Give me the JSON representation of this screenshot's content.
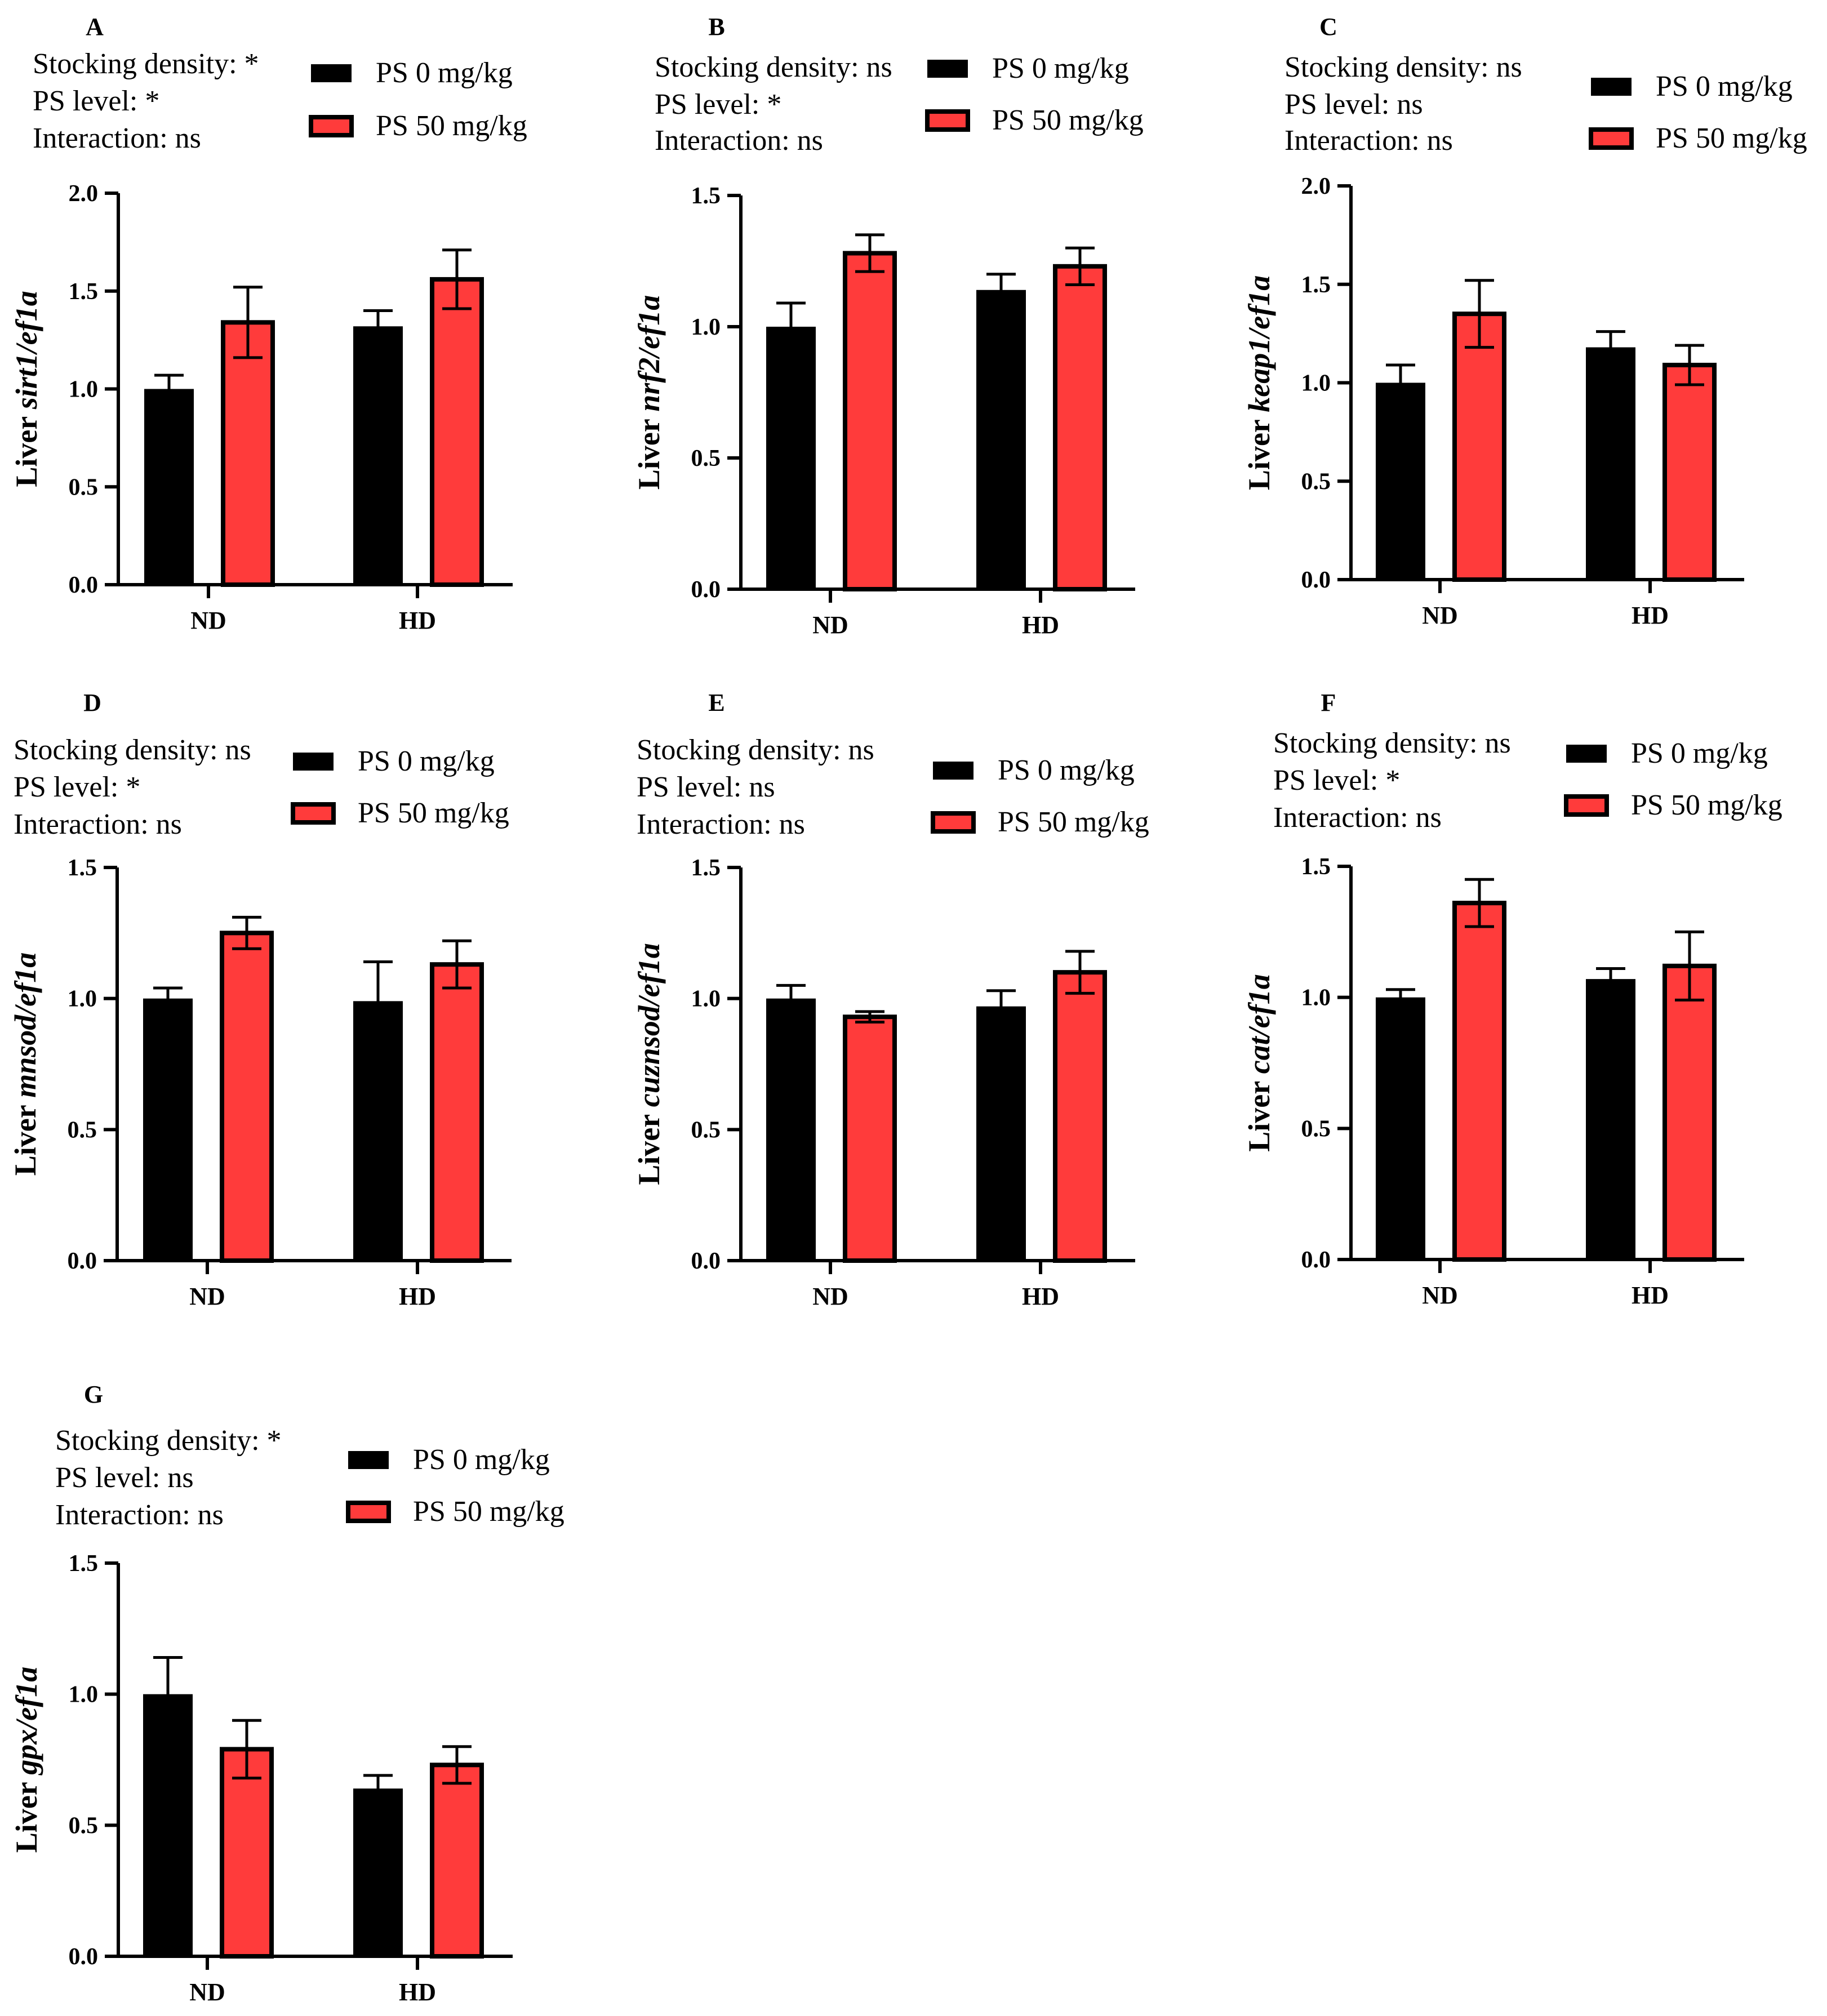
{
  "figure": {
    "legend": {
      "series0": "PS 0 mg/kg",
      "series1": "PS 50 mg/kg"
    },
    "colors": {
      "ps0": "#000000",
      "ps50": "#ff3b3b"
    }
  },
  "chart_data": [
    {
      "type": "bar",
      "panel": "A",
      "stats": [
        "Stocking density: *",
        "PS level: *",
        "Interaction: ns"
      ],
      "ylabel": {
        "prefix": "Liver ",
        "gene": "sirt1/ef1a"
      },
      "categories": [
        "ND",
        "HD"
      ],
      "series": [
        {
          "name": "PS 0 mg/kg",
          "values": [
            1.0,
            1.32
          ],
          "errors": [
            0.07,
            0.08
          ]
        },
        {
          "name": "PS 50 mg/kg",
          "values": [
            1.34,
            1.56
          ],
          "errors": [
            0.18,
            0.15
          ]
        }
      ],
      "ylim": [
        0,
        2.0
      ],
      "yticks": [
        0.0,
        0.5,
        1.0,
        1.5,
        2.0
      ],
      "tickLabels": [
        "0.0",
        "0.5",
        "1.0",
        "1.5",
        "2.0"
      ]
    },
    {
      "type": "bar",
      "panel": "B",
      "stats": [
        "Stocking density: ns",
        "PS level: *",
        "Interaction: ns"
      ],
      "ylabel": {
        "prefix": "Liver ",
        "gene": "nrf2/ef1a"
      },
      "categories": [
        "ND",
        "HD"
      ],
      "series": [
        {
          "name": "PS 0 mg/kg",
          "values": [
            1.0,
            1.14
          ],
          "errors": [
            0.09,
            0.06
          ]
        },
        {
          "name": "PS 50 mg/kg",
          "values": [
            1.28,
            1.23
          ],
          "errors": [
            0.07,
            0.07
          ]
        }
      ],
      "ylim": [
        0,
        1.5
      ],
      "yticks": [
        0.0,
        0.5,
        1.0,
        1.5
      ],
      "tickLabels": [
        "0.0",
        "0.5",
        "1.0",
        "1.5"
      ]
    },
    {
      "type": "bar",
      "panel": "C",
      "stats": [
        "Stocking density: ns",
        "PS level: ns",
        "Interaction: ns"
      ],
      "ylabel": {
        "prefix": "Liver ",
        "gene": "keap1/ef1a"
      },
      "categories": [
        "ND",
        "HD"
      ],
      "series": [
        {
          "name": "PS 0 mg/kg",
          "values": [
            1.0,
            1.18
          ],
          "errors": [
            0.09,
            0.08
          ]
        },
        {
          "name": "PS 50 mg/kg",
          "values": [
            1.35,
            1.09
          ],
          "errors": [
            0.17,
            0.1
          ]
        }
      ],
      "ylim": [
        0,
        2.0
      ],
      "yticks": [
        0.0,
        0.5,
        1.0,
        1.5,
        2.0
      ],
      "tickLabels": [
        "0.0",
        "0.5",
        "1.0",
        "1.5",
        "2.0"
      ]
    },
    {
      "type": "bar",
      "panel": "D",
      "stats": [
        "Stocking density: ns",
        "PS level: *",
        "Interaction: ns"
      ],
      "ylabel": {
        "prefix": "Liver ",
        "gene": "mnsod/ef1a"
      },
      "categories": [
        "ND",
        "HD"
      ],
      "series": [
        {
          "name": "PS 0 mg/kg",
          "values": [
            1.0,
            0.99
          ],
          "errors": [
            0.04,
            0.15
          ]
        },
        {
          "name": "PS 50 mg/kg",
          "values": [
            1.25,
            1.13
          ],
          "errors": [
            0.06,
            0.09
          ]
        }
      ],
      "ylim": [
        0,
        1.5
      ],
      "yticks": [
        0.0,
        0.5,
        1.0,
        1.5
      ],
      "tickLabels": [
        "0.0",
        "0.5",
        "1.0",
        "1.5"
      ]
    },
    {
      "type": "bar",
      "panel": "E",
      "stats": [
        "Stocking density: ns",
        "PS level: ns",
        "Interaction: ns"
      ],
      "ylabel": {
        "prefix": "Liver ",
        "gene": "cuznsod/ef1a"
      },
      "categories": [
        "ND",
        "HD"
      ],
      "series": [
        {
          "name": "PS 0 mg/kg",
          "values": [
            1.0,
            0.97
          ],
          "errors": [
            0.05,
            0.06
          ]
        },
        {
          "name": "PS 50 mg/kg",
          "values": [
            0.93,
            1.1
          ],
          "errors": [
            0.02,
            0.08
          ]
        }
      ],
      "ylim": [
        0,
        1.5
      ],
      "yticks": [
        0.0,
        0.5,
        1.0,
        1.5
      ],
      "tickLabels": [
        "0.0",
        "0.5",
        "1.0",
        "1.5"
      ]
    },
    {
      "type": "bar",
      "panel": "F",
      "stats": [
        "Stocking density: ns",
        "PS level: *",
        "Interaction: ns"
      ],
      "ylabel": {
        "prefix": "Liver ",
        "gene": "cat/ef1a"
      },
      "categories": [
        "ND",
        "HD"
      ],
      "series": [
        {
          "name": "PS 0 mg/kg",
          "values": [
            1.0,
            1.07
          ],
          "errors": [
            0.03,
            0.04
          ]
        },
        {
          "name": "PS 50 mg/kg",
          "values": [
            1.36,
            1.12
          ],
          "errors": [
            0.09,
            0.13
          ]
        }
      ],
      "ylim": [
        0,
        1.5
      ],
      "yticks": [
        0.0,
        0.5,
        1.0,
        1.5
      ],
      "tickLabels": [
        "0.0",
        "0.5",
        "1.0",
        "1.5"
      ]
    },
    {
      "type": "bar",
      "panel": "G",
      "stats": [
        "Stocking density: *",
        "PS level: ns",
        "Interaction: ns"
      ],
      "ylabel": {
        "prefix": "Liver ",
        "gene": "gpx/ef1a"
      },
      "categories": [
        "ND",
        "HD"
      ],
      "series": [
        {
          "name": "PS 0 mg/kg",
          "values": [
            1.0,
            0.64
          ],
          "errors": [
            0.14,
            0.05
          ]
        },
        {
          "name": "PS 50 mg/kg",
          "values": [
            0.79,
            0.73
          ],
          "errors": [
            0.11,
            0.07
          ]
        }
      ],
      "ylim": [
        0,
        1.5
      ],
      "yticks": [
        0.0,
        0.5,
        1.0,
        1.5
      ],
      "tickLabels": [
        "0.0",
        "0.5",
        "1.0",
        "1.5"
      ]
    }
  ]
}
